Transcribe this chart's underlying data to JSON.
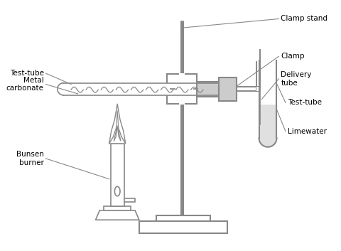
{
  "bg_color": "#ffffff",
  "line_color": "#888888",
  "fill_color": "#cccccc",
  "limewater_color": "#e0e0e0",
  "labels": {
    "clamp_stand": "Clamp stand",
    "clamp": "Clamp",
    "delivery_tube": "Delivery\ntube",
    "test_tube_right": "Test-tube",
    "limewater": "Limewater",
    "test_tube_left": "Test-tube",
    "metal_carbonate": "Metal\ncarbonate",
    "bunsen": "Bunsen\nburner"
  },
  "figsize": [
    4.8,
    3.53
  ],
  "dpi": 100
}
